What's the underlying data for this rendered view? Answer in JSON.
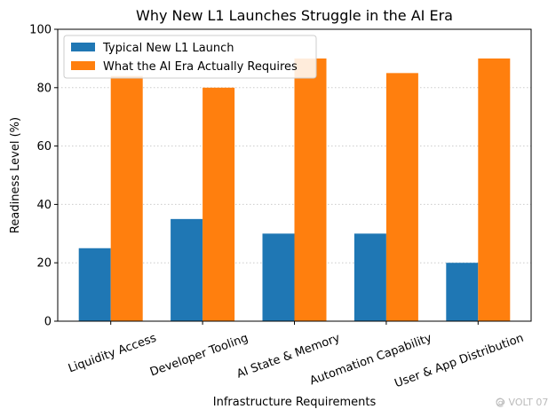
{
  "chart_data": {
    "type": "bar",
    "title": "Why New L1 Launches Struggle in the AI Era",
    "xlabel": "Infrastructure Requirements",
    "ylabel": "Readiness Level (%)",
    "ylim": [
      0,
      100
    ],
    "yticks": [
      0,
      20,
      40,
      60,
      80,
      100
    ],
    "grid": "horizontal dotted",
    "legend_position": "top-left",
    "categories": [
      "Liquidity Access",
      "Developer Tooling",
      "AI State & Memory",
      "Automation Capability",
      "User & App Distribution"
    ],
    "series": [
      {
        "name": "Typical New L1 Launch",
        "color": "#1f77b4",
        "values": [
          25,
          35,
          30,
          30,
          20
        ]
      },
      {
        "name": "What the AI Era Actually Requires",
        "color": "#ff7f0e",
        "values": [
          84,
          80,
          90,
          85,
          90
        ]
      }
    ]
  },
  "watermark": {
    "text": "@ VOLT 07"
  }
}
